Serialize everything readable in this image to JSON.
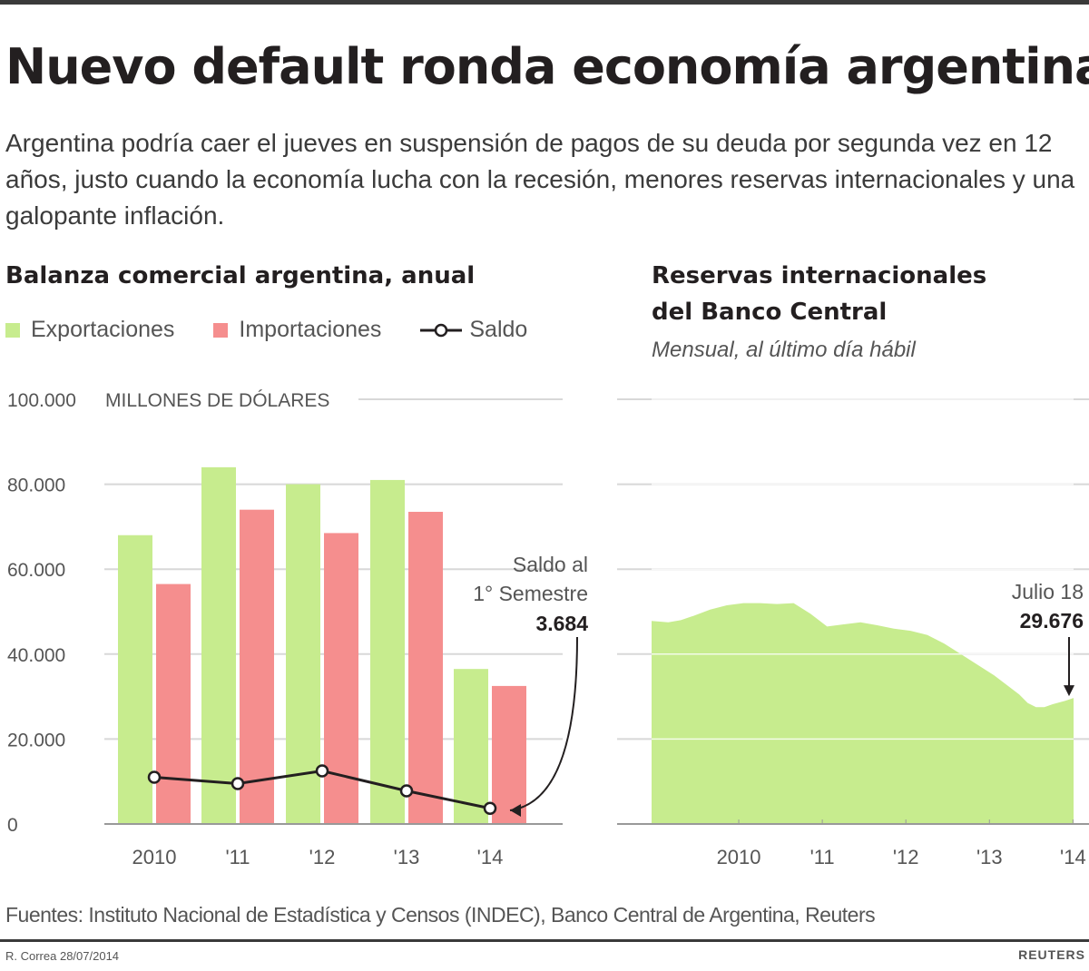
{
  "title": "Nuevo default ronda economía argentina",
  "subtitle": "Argentina podría caer el jueves en suspensión de pagos de su deuda por segunda vez en 12 años, justo cuando la economía lucha con la recesión, menores reservas internacionales y una galopante inflación.",
  "colors": {
    "exports": "#c7ec8e",
    "imports": "#f58e8e",
    "saldo": "#231f20",
    "reserves": "#c7ec8e",
    "grid": "#d8d8d8"
  },
  "legend": {
    "exports": "Exportaciones",
    "imports": "Importaciones",
    "saldo": "Saldo"
  },
  "left_chart": {
    "title": "Balanza comercial argentina, anual",
    "unit_label": "MILLONES DE DÓLARES",
    "annotation": {
      "line1": "Saldo al",
      "line2": "1° Semestre",
      "value": "3.684"
    }
  },
  "right_chart": {
    "title_line1": "Reservas internacionales",
    "title_line2": "del Banco Central",
    "note": "Mensual, al último día hábil",
    "annotation": {
      "label": "Julio 18",
      "value": "29.676"
    }
  },
  "chart_data": [
    {
      "type": "bar",
      "title": "Balanza comercial argentina, anual",
      "ylabel": "MILLONES DE DÓLARES",
      "ylim": [
        0,
        100000
      ],
      "yticks": [
        0,
        20000,
        40000,
        60000,
        80000,
        100000
      ],
      "ytick_labels": [
        "0",
        "20.000",
        "40.000",
        "60.000",
        "80.000",
        "100.000"
      ],
      "categories": [
        "2010",
        "'11",
        "'12",
        "'13",
        "'14"
      ],
      "series": [
        {
          "name": "Exportaciones",
          "kind": "bar",
          "values": [
            68000,
            84000,
            80000,
            81000,
            36500
          ]
        },
        {
          "name": "Importaciones",
          "kind": "bar",
          "values": [
            56500,
            74000,
            68500,
            73500,
            32500
          ]
        },
        {
          "name": "Saldo",
          "kind": "line",
          "values": [
            11000,
            9500,
            12500,
            7800,
            3684
          ]
        }
      ]
    },
    {
      "type": "area",
      "title": "Reservas internacionales del Banco Central",
      "subtitle": "Mensual, al último día hábil",
      "ylim": [
        0,
        100000
      ],
      "yticks": [
        0,
        20000,
        40000,
        60000,
        80000,
        100000
      ],
      "x_tick_labels": [
        "2010",
        "'11",
        "'12",
        "'13",
        "'14"
      ],
      "x_tick_positions": [
        2010,
        2011,
        2012,
        2013,
        2014
      ],
      "x_range": [
        2009.5,
        2014.55
      ],
      "series": [
        {
          "name": "Reservas",
          "x": [
            2009.5,
            2009.7,
            2009.85,
            2010.0,
            2010.2,
            2010.4,
            2010.6,
            2010.8,
            2011.0,
            2011.2,
            2011.4,
            2011.6,
            2011.8,
            2012.0,
            2012.2,
            2012.4,
            2012.6,
            2012.8,
            2013.0,
            2013.2,
            2013.4,
            2013.6,
            2013.8,
            2013.9,
            2014.0,
            2014.1,
            2014.2,
            2014.3,
            2014.45,
            2014.55
          ],
          "values": [
            47800,
            47500,
            48000,
            49000,
            50500,
            51500,
            52000,
            52000,
            51800,
            52000,
            49500,
            46500,
            47000,
            47500,
            46800,
            46000,
            45500,
            44500,
            42500,
            40000,
            37500,
            35000,
            32000,
            30500,
            28500,
            27500,
            27500,
            28200,
            29000,
            29676
          ]
        }
      ]
    }
  ],
  "footer": {
    "sources": "Fuentes: Instituto Nacional de Estadística y Censos (INDEC), Banco Central de Argentina, Reuters",
    "credit": "R. Correa 28/07/2014",
    "logo": "REUTERS"
  }
}
